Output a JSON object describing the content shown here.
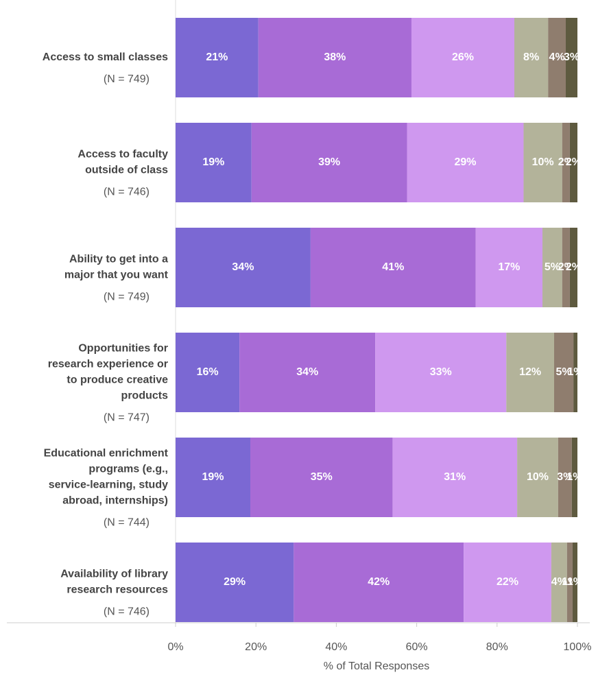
{
  "chart_data": {
    "type": "stacked-barh",
    "categories": [
      [
        "Access to small classes"
      ],
      [
        "Access to faculty",
        "outside of class"
      ],
      [
        "Ability to get into a",
        "major that you want"
      ],
      [
        "Opportunities for",
        "research experience or",
        "to produce creative",
        "products"
      ],
      [
        "Educational enrichment",
        "programs (e.g.,",
        "service-learning, study",
        "abroad, internships)"
      ],
      [
        "Availability of library",
        "research resources"
      ]
    ],
    "n_labels": [
      "(N = 749)",
      "(N = 746)",
      "(N = 749)",
      "(N = 747)",
      "(N = 744)",
      "(N = 746)"
    ],
    "series": [
      {
        "color": "#7b68d3",
        "values": [
          20.6,
          18.9,
          33.6,
          15.9,
          18.6,
          29.4
        ],
        "value_labels": [
          "21%",
          "19%",
          "34%",
          "16%",
          "19%",
          "29%"
        ]
      },
      {
        "color": "#a86bd6",
        "values": [
          38.1,
          38.7,
          41.1,
          33.8,
          35.4,
          42.3
        ],
        "value_labels": [
          "38%",
          "39%",
          "41%",
          "34%",
          "35%",
          "42%"
        ]
      },
      {
        "color": "#cf98ef",
        "values": [
          25.6,
          29.0,
          16.6,
          32.6,
          31.0,
          21.8
        ],
        "value_labels": [
          "26%",
          "29%",
          "17%",
          "33%",
          "31%",
          "22%"
        ]
      },
      {
        "color": "#b3b39a",
        "values": [
          8.4,
          9.6,
          4.9,
          11.9,
          10.2,
          3.9
        ],
        "value_labels": [
          "8%",
          "10%",
          "5%",
          "12%",
          "10%",
          "4%"
        ]
      },
      {
        "color": "#8f7d6e",
        "values": [
          4.4,
          1.9,
          1.9,
          4.8,
          3.4,
          1.4
        ],
        "value_labels": [
          "4%",
          "2%",
          "2%",
          "5%",
          "3%",
          "1%"
        ]
      },
      {
        "color": "#5e5a3f",
        "values": [
          2.9,
          1.9,
          1.9,
          1.0,
          1.4,
          1.2
        ],
        "value_labels": [
          "3%",
          "2%",
          "2%",
          "1%",
          "1%",
          "1%"
        ]
      }
    ],
    "xlim": [
      0,
      100
    ],
    "xticks": [
      {
        "value": 0,
        "label": "0%"
      },
      {
        "value": 20,
        "label": "20%"
      },
      {
        "value": 40,
        "label": "40%"
      },
      {
        "value": 60,
        "label": "60%"
      },
      {
        "value": 80,
        "label": "80%"
      },
      {
        "value": 100,
        "label": "100%"
      }
    ],
    "xlabel": "% of Total Responses"
  }
}
